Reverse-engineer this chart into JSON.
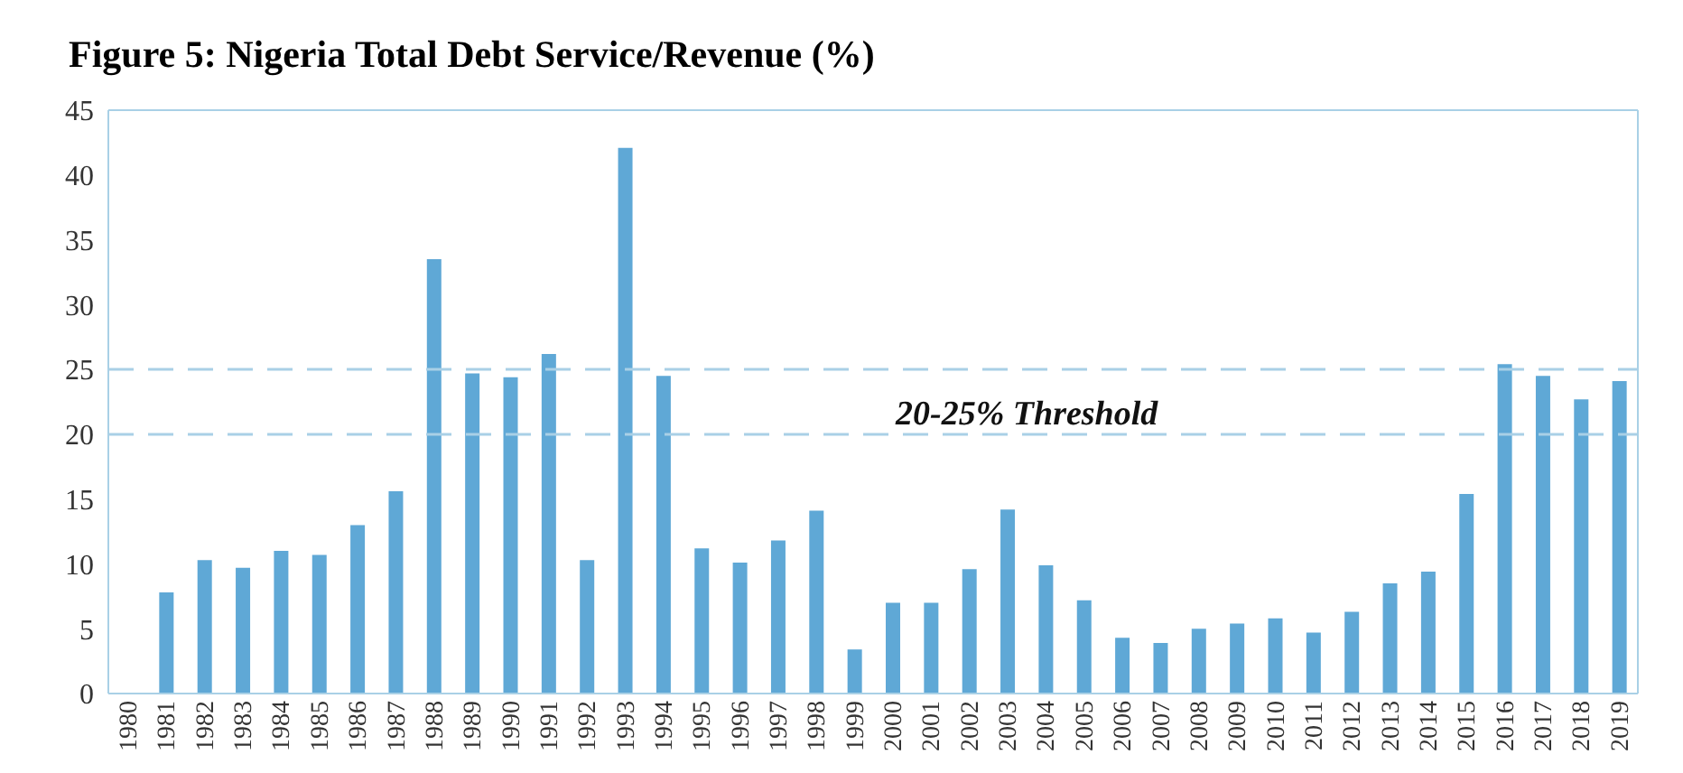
{
  "chart_data": {
    "type": "bar",
    "title": "Figure 5: Nigeria Total Debt Service/Revenue (%)",
    "categories": [
      "1980",
      "1981",
      "1982",
      "1983",
      "1984",
      "1985",
      "1986",
      "1987",
      "1988",
      "1989",
      "1990",
      "1991",
      "1992",
      "1993",
      "1994",
      "1995",
      "1996",
      "1997",
      "1998",
      "1999",
      "2000",
      "2001",
      "2002",
      "2003",
      "2004",
      "2005",
      "2006",
      "2007",
      "2008",
      "2009",
      "2010",
      "2011",
      "2012",
      "2013",
      "2014",
      "2015",
      "2016",
      "2017",
      "2018",
      "2019"
    ],
    "values": [
      null,
      7.8,
      10.3,
      9.7,
      11.0,
      10.7,
      13.0,
      15.6,
      33.5,
      24.7,
      24.4,
      26.2,
      10.3,
      42.1,
      24.5,
      11.2,
      10.1,
      11.8,
      14.1,
      3.4,
      7.0,
      7.0,
      9.6,
      14.2,
      9.9,
      7.2,
      4.3,
      3.9,
      5.0,
      5.4,
      5.8,
      4.7,
      6.3,
      8.5,
      9.4,
      15.4,
      25.4,
      24.5,
      22.7,
      24.1
    ],
    "color": "#5fa8d6",
    "ylim": [
      0,
      45
    ],
    "yticks": [
      0,
      5,
      10,
      15,
      20,
      25,
      30,
      35,
      40,
      45
    ],
    "grid": false,
    "ref_lines": [
      {
        "axis": "y",
        "value": 20,
        "color": "#a9d0e6",
        "line_style": "dashed"
      },
      {
        "axis": "y",
        "value": 25,
        "color": "#a9d0e6",
        "line_style": "dashed"
      }
    ],
    "annotations": [
      "20-25% Threshold"
    ]
  }
}
